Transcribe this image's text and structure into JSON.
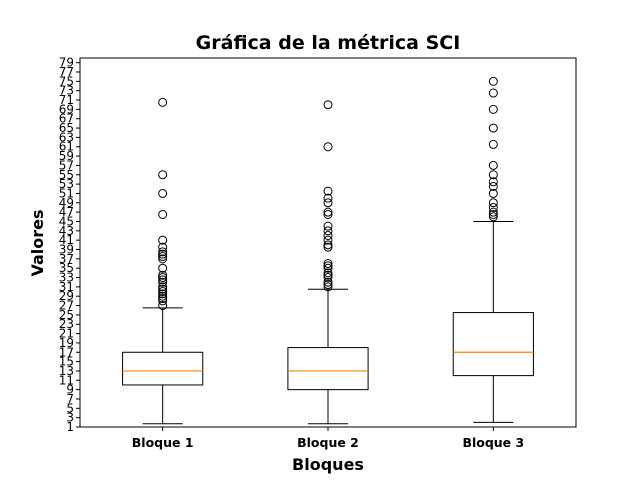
{
  "chart_data": {
    "type": "box",
    "title": "Gráfica de la métrica SCI",
    "xlabel": "Bloques",
    "ylabel": "Valores",
    "ylim": [
      1,
      80
    ],
    "yticks": [
      1,
      3,
      5,
      7,
      9,
      11,
      13,
      15,
      17,
      19,
      21,
      23,
      25,
      27,
      29,
      31,
      33,
      35,
      37,
      39,
      41,
      43,
      45,
      47,
      49,
      51,
      53,
      55,
      57,
      59,
      61,
      63,
      65,
      67,
      69,
      71,
      73,
      75,
      77,
      79
    ],
    "grid": false,
    "categories": [
      "Bloque 1",
      "Bloque 2",
      "Bloque 3"
    ],
    "boxes": [
      {
        "label": "Bloque 1",
        "whisker_low": 1.7,
        "q1": 10,
        "median": 13,
        "q3": 17,
        "whisker_high": 26.5,
        "outliers": [
          27,
          28,
          28.5,
          29,
          29.5,
          30,
          30.5,
          31,
          32,
          32.5,
          33,
          33.5,
          35,
          37,
          37.5,
          38,
          38.5,
          39.5,
          41,
          46.5,
          51,
          55,
          70.5
        ]
      },
      {
        "label": "Bloque 2",
        "whisker_low": 1.7,
        "q1": 9,
        "median": 13,
        "q3": 18,
        "whisker_high": 30.5,
        "outliers": [
          31,
          31.5,
          32,
          33,
          33.5,
          34,
          35,
          35.5,
          36,
          39.5,
          40,
          41,
          42,
          43,
          44,
          46.5,
          47,
          49,
          50,
          51.5,
          61,
          70
        ]
      },
      {
        "label": "Bloque 3",
        "whisker_low": 2,
        "q1": 12,
        "median": 17,
        "q3": 25.5,
        "whisker_high": 45,
        "outliers": [
          46,
          46.5,
          47,
          48,
          49,
          51,
          52.5,
          53.5,
          55,
          57,
          61.5,
          65,
          69,
          72.5,
          75
        ]
      }
    ],
    "colors": {
      "box": "#000000",
      "median": "#ff7f0e",
      "outlier_edge": "#000000"
    }
  }
}
